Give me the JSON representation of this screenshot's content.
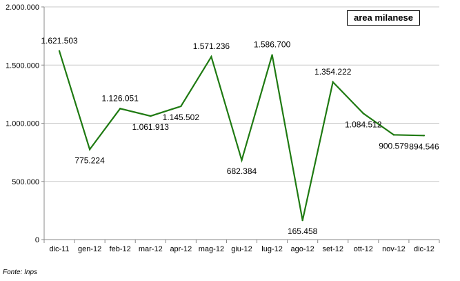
{
  "chart_data": {
    "type": "line",
    "categories": [
      "dic-11",
      "gen-12",
      "feb-12",
      "mar-12",
      "apr-12",
      "mag-12",
      "giu-12",
      "lug-12",
      "ago-12",
      "set-12",
      "ott-12",
      "nov-12",
      "dic-12"
    ],
    "series": [
      {
        "name": "area milanese",
        "values": [
          1621503,
          775224,
          1126051,
          1061913,
          1145502,
          1571236,
          682384,
          1586700,
          165458,
          1354222,
          1084512,
          900579,
          894546
        ],
        "labels": [
          "1.621.503",
          "775.224",
          "1.126.051",
          "1.061.913",
          "1.145.502",
          "1.571.236",
          "682.384",
          "1.586.700",
          "165.458",
          "1.354.222",
          "1.084.512",
          "900.579",
          "894.546"
        ]
      }
    ],
    "ylim": [
      0,
      2000000
    ],
    "yticks": [
      0,
      500000,
      1000000,
      1500000,
      2000000
    ],
    "ytick_labels": [
      "0",
      "500.000",
      "1.000.000",
      "1.500.000",
      "2.000.000"
    ],
    "grid": true,
    "legend_position": "top-right",
    "line_color": "#1f7a12"
  },
  "legend_label": "area milanese",
  "source": "Fonte: Inps"
}
